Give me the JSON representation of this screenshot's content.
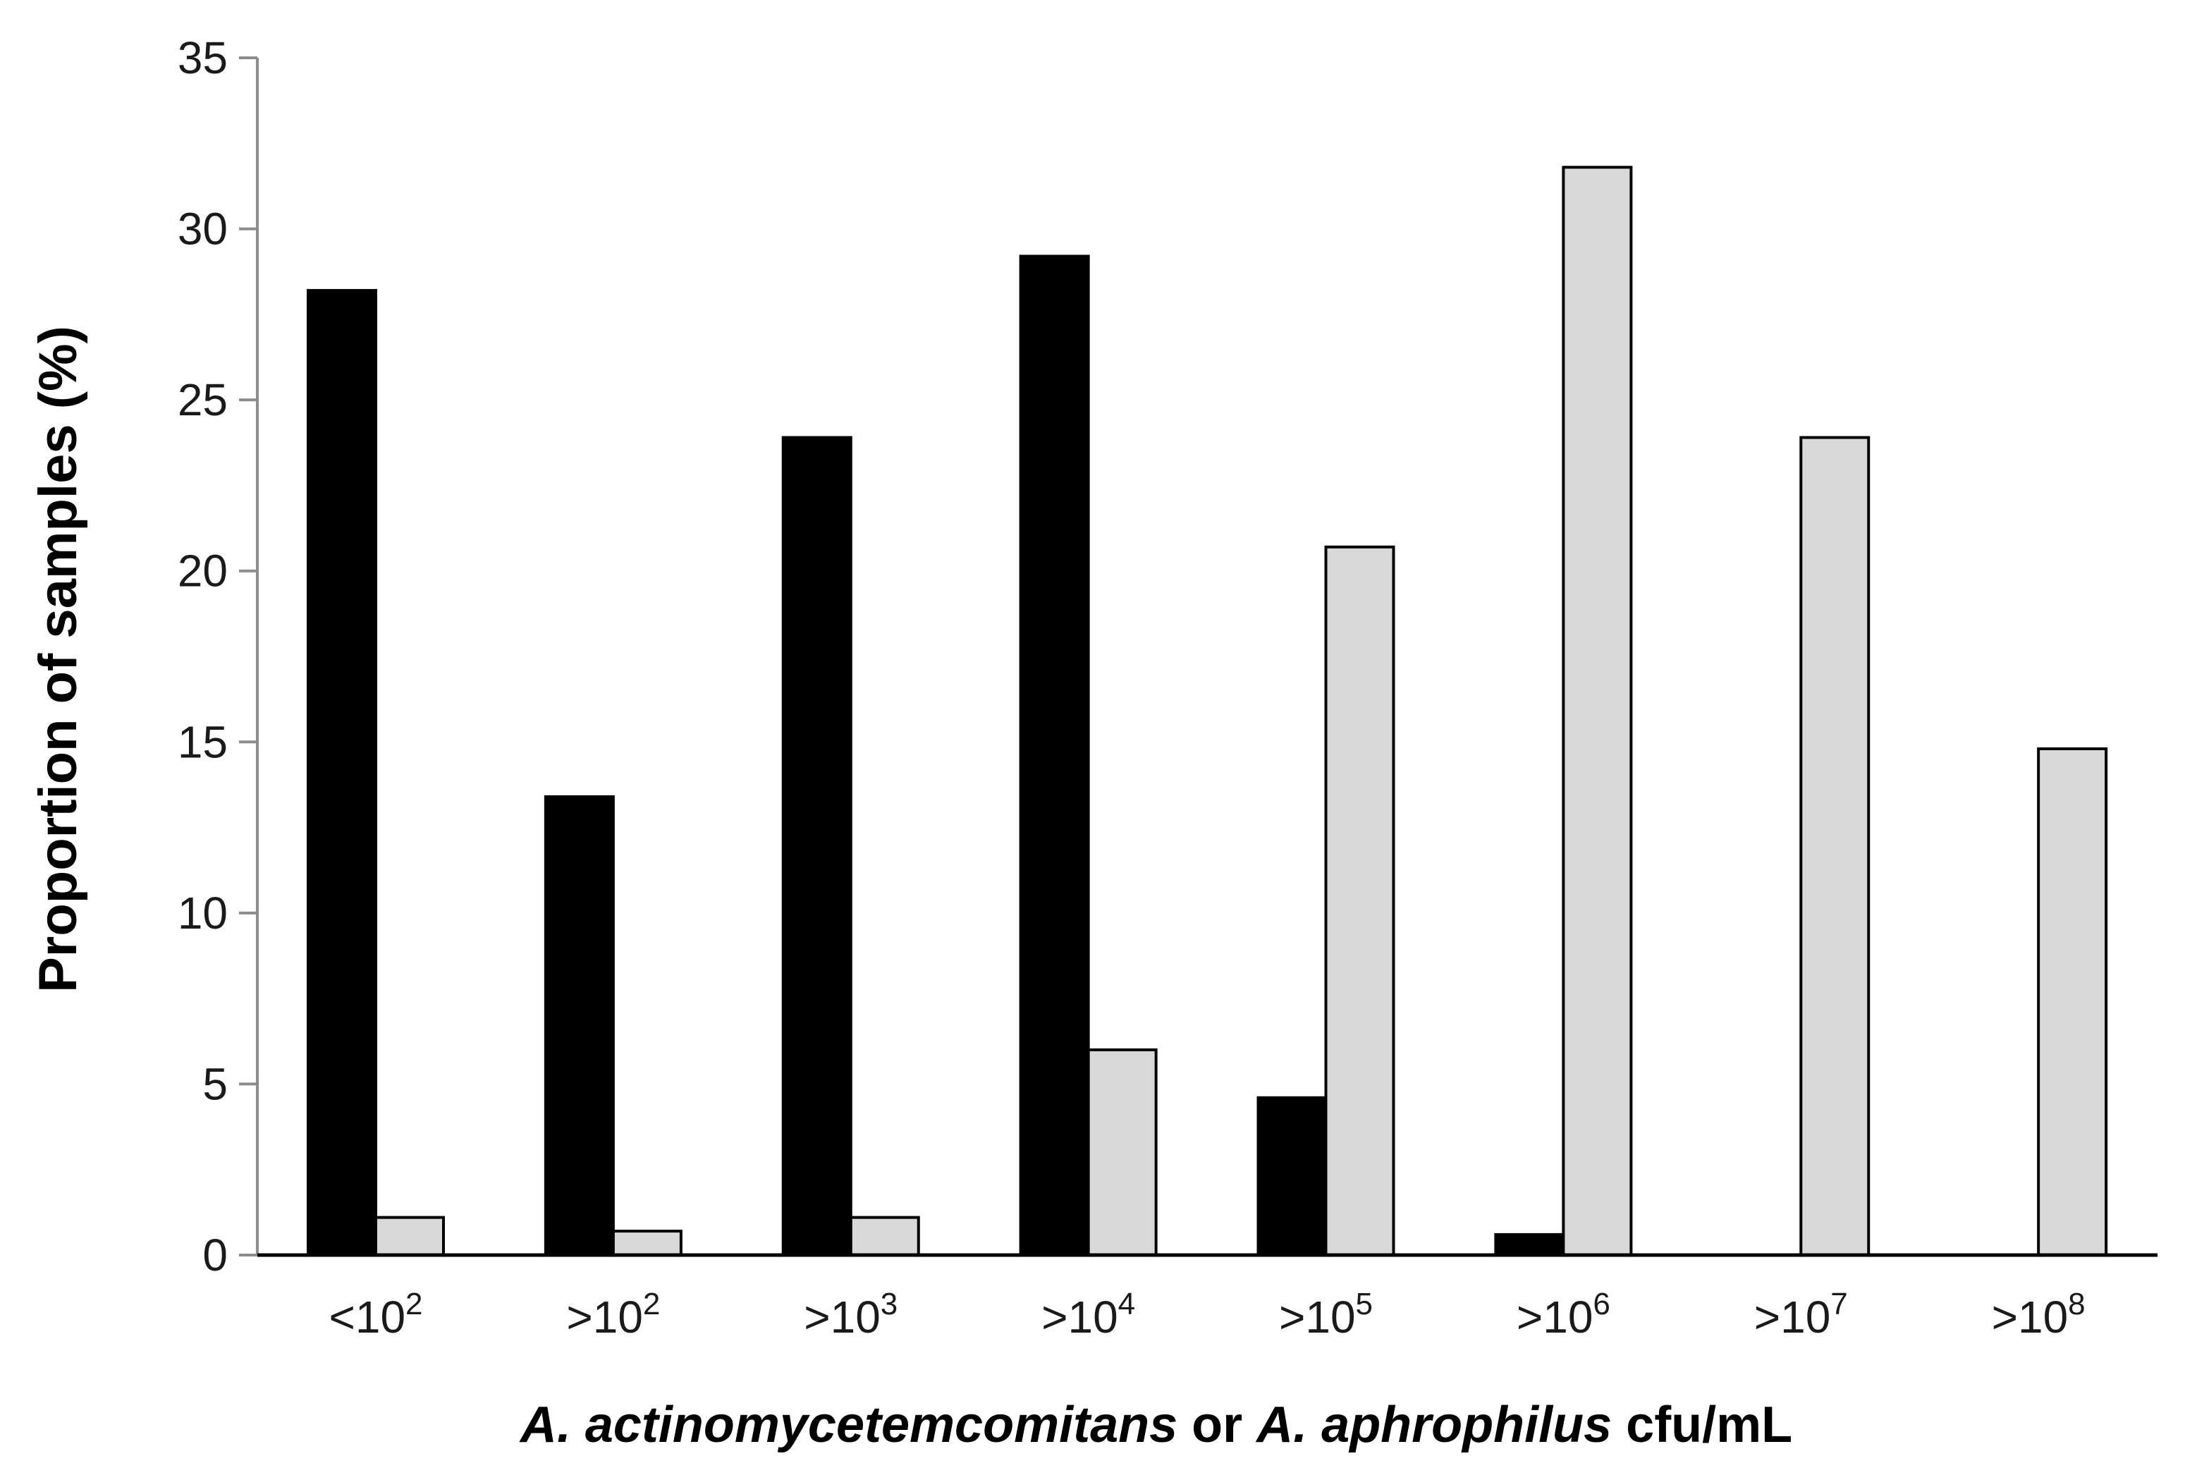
{
  "chart_data": {
    "type": "bar",
    "title": "",
    "xlabel": {
      "parts": [
        {
          "text": "A. actinomycetemcomitans",
          "italic": true
        },
        {
          "text": " or ",
          "italic": false
        },
        {
          "text": "A. aphrophilus",
          "italic": true
        },
        {
          "text": " cfu/mL",
          "italic": false
        }
      ]
    },
    "ylabel": "Proportion of samples (%)",
    "ylim": [
      0,
      35
    ],
    "yticks": [
      0,
      5,
      10,
      15,
      20,
      25,
      30,
      35
    ],
    "categories": [
      {
        "prefix": "<10",
        "exp": "2"
      },
      {
        "prefix": ">10",
        "exp": "2"
      },
      {
        "prefix": ">10",
        "exp": "3"
      },
      {
        "prefix": ">10",
        "exp": "4"
      },
      {
        "prefix": ">10",
        "exp": "5"
      },
      {
        "prefix": ">10",
        "exp": "6"
      },
      {
        "prefix": ">10",
        "exp": "7"
      },
      {
        "prefix": ">10",
        "exp": "8"
      }
    ],
    "series": [
      {
        "color": "#000000",
        "values": [
          28.2,
          13.4,
          23.9,
          29.2,
          4.6,
          0.6,
          0,
          0
        ]
      },
      {
        "color": "#d9d9d9",
        "values": [
          1.1,
          0.7,
          1.1,
          6.0,
          20.7,
          31.8,
          23.9,
          14.8
        ]
      }
    ],
    "grid": false,
    "legend": "none"
  }
}
